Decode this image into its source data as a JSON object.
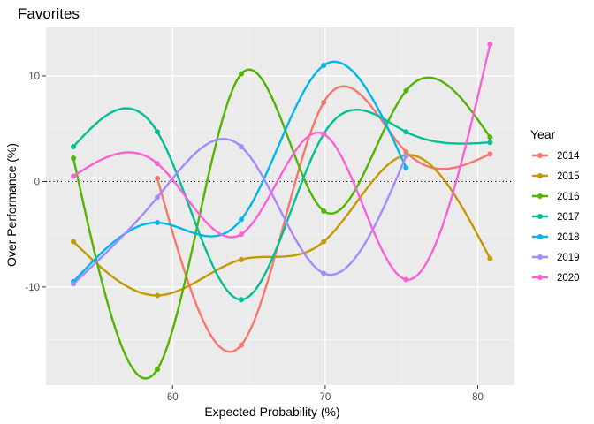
{
  "chart_data": {
    "type": "line",
    "title": "Favorites",
    "xlabel": "Expected Probability (%)",
    "ylabel": "Over Performance (%)",
    "xlim": [
      51.7,
      82.4
    ],
    "ylim": [
      -19.3,
      14.6
    ],
    "x_ticks": [
      60,
      70,
      80
    ],
    "y_ticks": [
      -10,
      0,
      10
    ],
    "x_minor": [
      55,
      65,
      75
    ],
    "y_minor": [
      -15,
      -5,
      5
    ],
    "grid": true,
    "reference_line": {
      "y": 0,
      "style": "dotted"
    },
    "legend": {
      "title": "Year",
      "position": "right"
    },
    "series": [
      {
        "name": "2014",
        "color": "#F8766D",
        "points": [
          [
            59.0,
            0.3
          ],
          [
            64.5,
            -15.5
          ],
          [
            69.9,
            7.5
          ],
          [
            75.3,
            2.8
          ],
          [
            80.8,
            2.6
          ]
        ]
      },
      {
        "name": "2015",
        "color": "#C49A00",
        "points": [
          [
            53.5,
            -5.7
          ],
          [
            59.0,
            -10.8
          ],
          [
            64.5,
            -7.4
          ],
          [
            69.9,
            -5.7
          ],
          [
            75.3,
            2.5
          ],
          [
            80.8,
            -7.3
          ]
        ]
      },
      {
        "name": "2016",
        "color": "#53B400",
        "points": [
          [
            53.5,
            2.2
          ],
          [
            59.0,
            -17.8
          ],
          [
            64.5,
            10.2
          ],
          [
            69.9,
            -2.8
          ],
          [
            75.3,
            8.6
          ],
          [
            80.8,
            4.2
          ]
        ]
      },
      {
        "name": "2017",
        "color": "#00C094",
        "points": [
          [
            53.5,
            3.3
          ],
          [
            59.0,
            4.7
          ],
          [
            64.5,
            -11.2
          ],
          [
            69.9,
            4.5
          ],
          [
            75.3,
            4.7
          ],
          [
            80.8,
            3.7
          ]
        ]
      },
      {
        "name": "2018",
        "color": "#00B6EB",
        "points": [
          [
            53.5,
            -9.5
          ],
          [
            59.0,
            -3.9
          ],
          [
            64.5,
            -3.6
          ],
          [
            69.9,
            11.0
          ],
          [
            75.3,
            1.3
          ]
        ]
      },
      {
        "name": "2019",
        "color": "#A58AFF",
        "points": [
          [
            53.5,
            -9.7
          ],
          [
            59.0,
            -1.5
          ],
          [
            64.5,
            3.3
          ],
          [
            69.9,
            -8.7
          ],
          [
            75.3,
            2.4
          ]
        ]
      },
      {
        "name": "2020",
        "color": "#FB61D7",
        "points": [
          [
            53.5,
            0.5
          ],
          [
            59.0,
            1.7
          ],
          [
            64.5,
            -5.0
          ],
          [
            69.9,
            4.5
          ],
          [
            75.3,
            -9.3
          ],
          [
            80.8,
            13.0
          ]
        ]
      }
    ]
  }
}
